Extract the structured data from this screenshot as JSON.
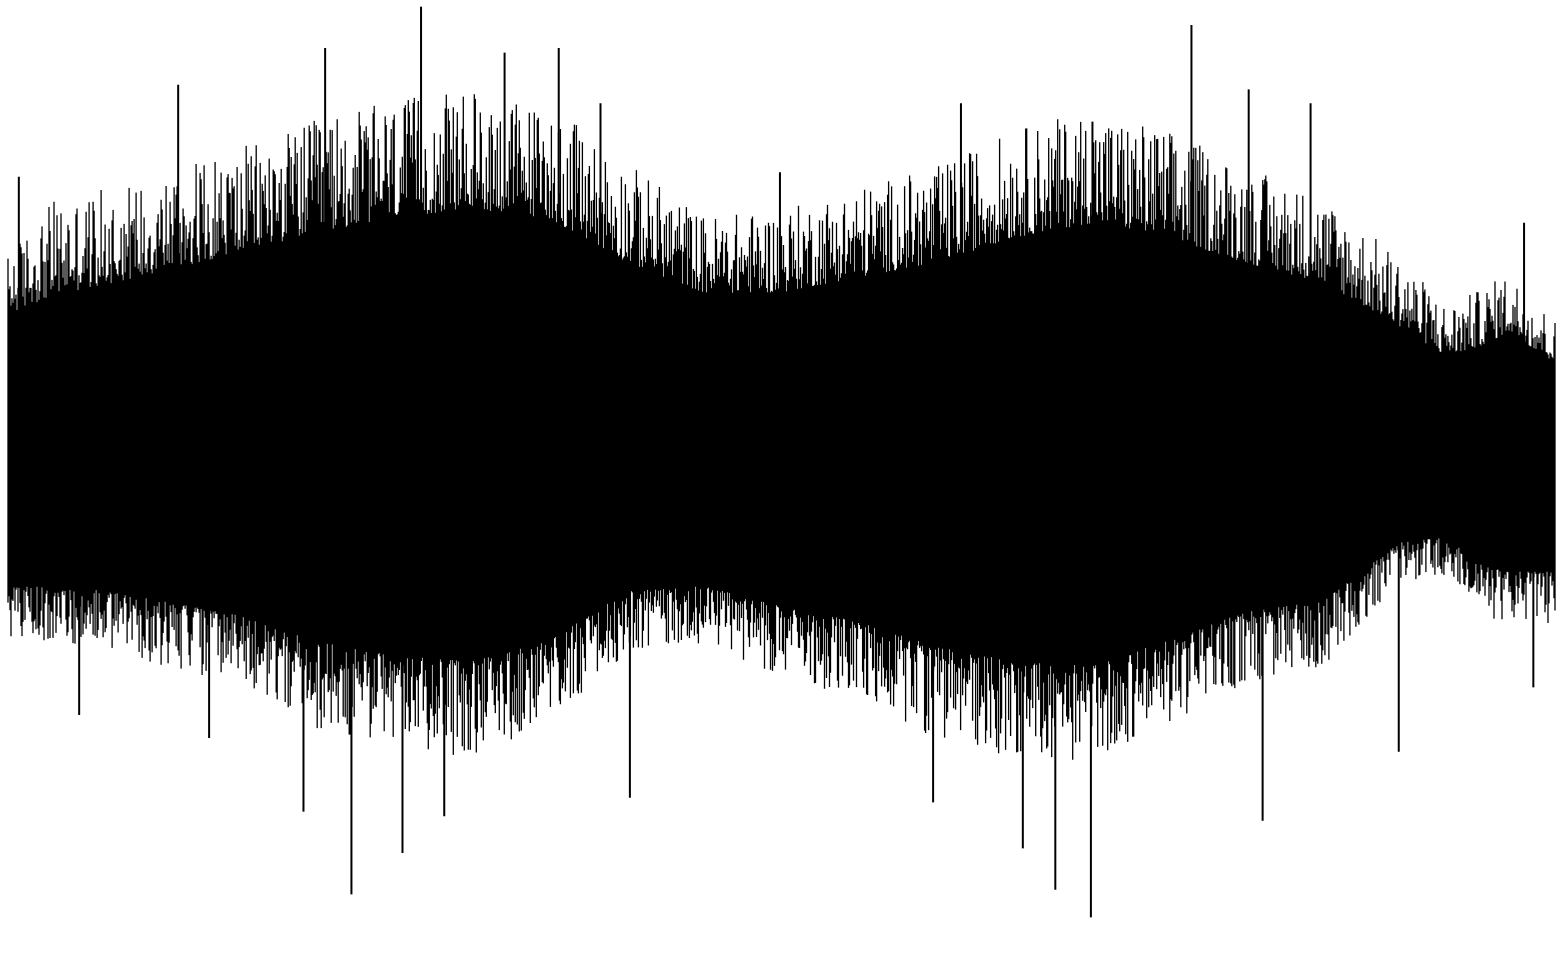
{
  "chart_data": {
    "type": "area",
    "title": "",
    "xlabel": "",
    "ylabel": "",
    "grid": false,
    "legend": "none",
    "axes_visible": false,
    "colors": {
      "waveform": "#000000",
      "background": "#ffffff"
    },
    "x_range": [
      0,
      1
    ],
    "y_range": [
      -1,
      1
    ],
    "envelope": {
      "x": [
        0.0,
        0.03,
        0.06,
        0.1,
        0.15,
        0.2,
        0.25,
        0.3,
        0.35,
        0.4,
        0.45,
        0.5,
        0.55,
        0.6,
        0.65,
        0.7,
        0.75,
        0.8,
        0.85,
        0.9,
        0.93,
        0.95,
        0.97,
        1.0
      ],
      "upper": [
        0.44,
        0.55,
        0.57,
        0.61,
        0.66,
        0.72,
        0.76,
        0.78,
        0.75,
        0.63,
        0.52,
        0.53,
        0.58,
        0.62,
        0.7,
        0.74,
        0.7,
        0.62,
        0.56,
        0.43,
        0.33,
        0.36,
        0.4,
        0.3
      ],
      "lower": [
        -0.37,
        -0.38,
        -0.39,
        -0.43,
        -0.47,
        -0.56,
        -0.6,
        -0.62,
        -0.55,
        -0.4,
        -0.38,
        -0.45,
        -0.5,
        -0.58,
        -0.62,
        -0.63,
        -0.55,
        -0.47,
        -0.43,
        -0.25,
        -0.24,
        -0.32,
        -0.34,
        -0.34
      ],
      "core_upper": [
        0.3,
        0.33,
        0.35,
        0.38,
        0.42,
        0.46,
        0.49,
        0.51,
        0.49,
        0.4,
        0.34,
        0.34,
        0.37,
        0.4,
        0.45,
        0.48,
        0.45,
        0.4,
        0.36,
        0.27,
        0.21,
        0.23,
        0.26,
        0.2
      ],
      "core_lower": [
        -0.25,
        -0.25,
        -0.26,
        -0.28,
        -0.31,
        -0.36,
        -0.39,
        -0.4,
        -0.36,
        -0.26,
        -0.25,
        -0.29,
        -0.32,
        -0.37,
        -0.4,
        -0.41,
        -0.36,
        -0.3,
        -0.28,
        -0.16,
        -0.15,
        -0.2,
        -0.22,
        -0.22
      ]
    },
    "spikes_upper": [
      [
        0.007,
        0.62
      ],
      [
        0.11,
        0.82
      ],
      [
        0.205,
        0.9
      ],
      [
        0.267,
        0.99
      ],
      [
        0.321,
        0.89
      ],
      [
        0.356,
        0.9
      ],
      [
        0.383,
        0.78
      ],
      [
        0.499,
        0.63
      ],
      [
        0.616,
        0.78
      ],
      [
        0.701,
        0.74
      ],
      [
        0.765,
        0.95
      ],
      [
        0.802,
        0.81
      ],
      [
        0.842,
        0.78
      ],
      [
        0.98,
        0.52
      ]
    ],
    "spikes_lower": [
      [
        0.046,
        -0.55
      ],
      [
        0.13,
        -0.6
      ],
      [
        0.191,
        -0.76
      ],
      [
        0.222,
        -0.94
      ],
      [
        0.255,
        -0.85
      ],
      [
        0.282,
        -0.77
      ],
      [
        0.402,
        -0.73
      ],
      [
        0.598,
        -0.74
      ],
      [
        0.656,
        -0.84
      ],
      [
        0.677,
        -0.93
      ],
      [
        0.7,
        -0.99
      ],
      [
        0.811,
        -0.78
      ],
      [
        0.899,
        -0.63
      ],
      [
        0.986,
        -0.49
      ]
    ]
  }
}
